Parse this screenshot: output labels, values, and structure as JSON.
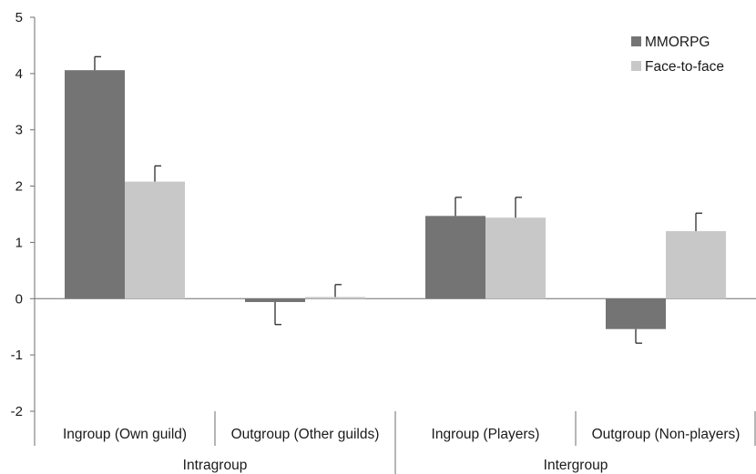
{
  "chart_data": {
    "type": "bar",
    "categories": [
      "Ingroup (Own guild)",
      "Outgroup (Other guilds)",
      "Ingroup (Players)",
      "Outgroup (Non-players)"
    ],
    "groups": [
      {
        "label": "Intragroup",
        "categories": [
          0,
          1
        ]
      },
      {
        "label": "Intergroup",
        "categories": [
          2,
          3
        ]
      }
    ],
    "series": [
      {
        "name": "MMORPG",
        "color": "#747474",
        "values": [
          4.06,
          -0.06,
          1.47,
          -0.54
        ],
        "errors": [
          0.24,
          0.4,
          0.33,
          0.25
        ]
      },
      {
        "name": "Face-to-face",
        "color": "#c8c8c8",
        "values": [
          2.08,
          0.03,
          1.44,
          1.2
        ],
        "errors": [
          0.28,
          0.22,
          0.36,
          0.32
        ]
      }
    ],
    "ylim": [
      -2,
      5
    ],
    "yticks": [
      5,
      4,
      3,
      2,
      1,
      0,
      -1,
      -2
    ],
    "ytick_labels": [
      "5",
      "4",
      "3",
      "2",
      "1",
      "0",
      "-1",
      "-2"
    ],
    "legend_position": "top-right",
    "grid": false
  }
}
